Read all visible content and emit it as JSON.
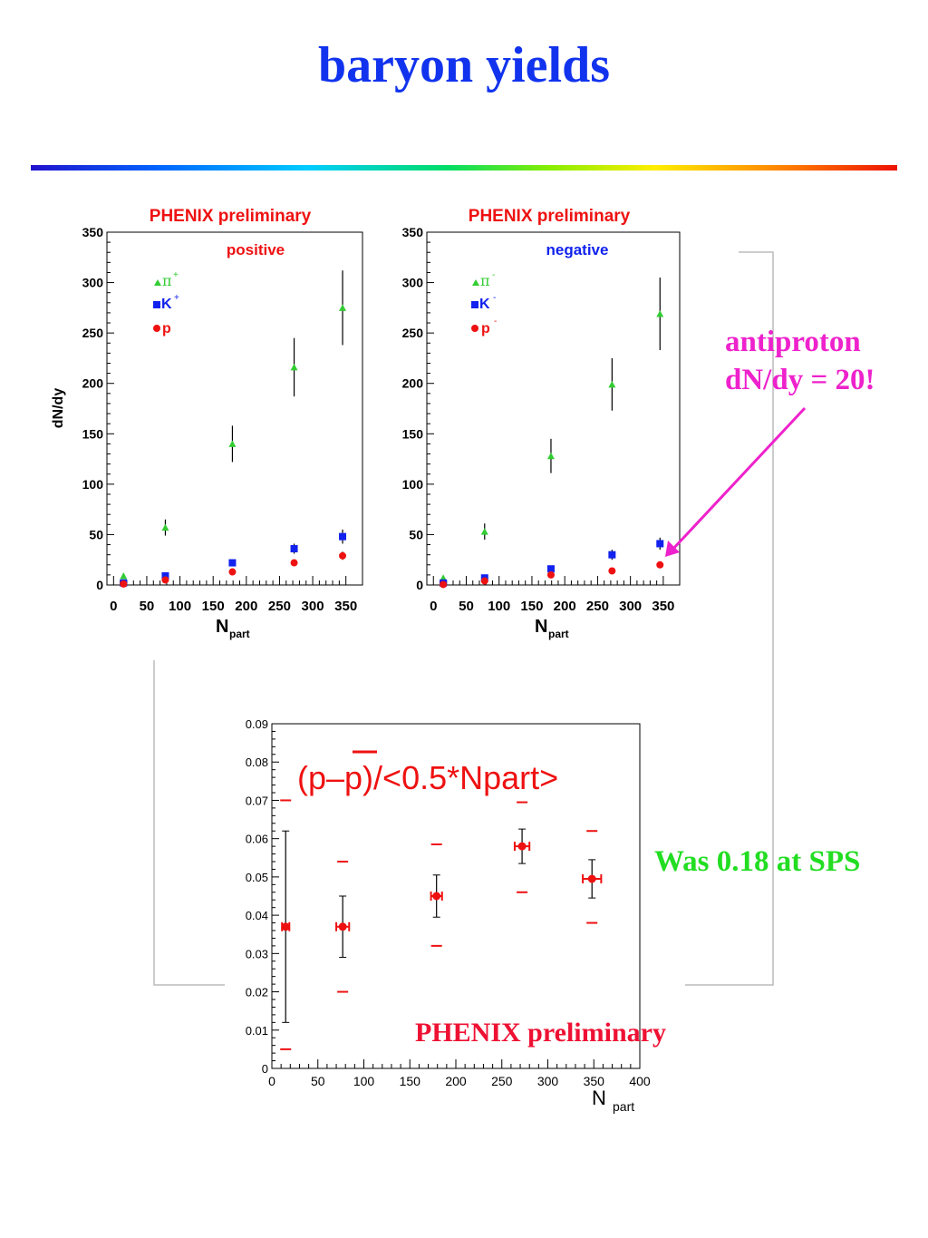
{
  "slide": {
    "title": "baryon yields",
    "annotation_antiproton_line1": "antiproton",
    "annotation_antiproton_line2": "dN/dy = 20!",
    "annotation_sps": "Was 0.18 at SPS",
    "annotation_phenix": "PHENIX preliminary"
  },
  "colors": {
    "pion": "#33cc33",
    "kaon": "#1122ee",
    "proton": "#ee1111",
    "arrow": "#ee22cc"
  },
  "chart_data": [
    {
      "type": "scatter",
      "title": "PHENIX preliminary",
      "subtitle": "positive",
      "xlabel": "N",
      "xlabel_sub": "part",
      "ylabel": "dN/dy",
      "xlim": [
        -10,
        375
      ],
      "ylim": [
        0,
        350
      ],
      "xticks": [
        "0",
        "50",
        "100",
        "150",
        "200",
        "250",
        "300",
        "350"
      ],
      "yticks": [
        "0",
        "50",
        "100",
        "150",
        "200",
        "250",
        "300",
        "350"
      ],
      "legend_position": "top-left",
      "series": [
        {
          "name": "π",
          "sup": "+",
          "marker": "triangle",
          "color": "#33cc33",
          "x": [
            15,
            78,
            179,
            272,
            345
          ],
          "y": [
            9,
            57,
            140,
            216,
            275
          ],
          "err": [
            2,
            8,
            18,
            29,
            37
          ]
        },
        {
          "name": "K",
          "sup": "+",
          "marker": "square",
          "color": "#1122ee",
          "x": [
            15,
            78,
            179,
            272,
            345
          ],
          "y": [
            2,
            9,
            22,
            36,
            48
          ],
          "err": [
            0.5,
            1.5,
            3,
            5,
            7
          ]
        },
        {
          "name": "p",
          "sup": "",
          "marker": "circle",
          "color": "#ee1111",
          "x": [
            15,
            78,
            179,
            272,
            345
          ],
          "y": [
            1,
            5,
            13,
            22,
            29
          ],
          "err": [
            0.3,
            1,
            2,
            3,
            4
          ]
        }
      ]
    },
    {
      "type": "scatter",
      "title": "PHENIX preliminary",
      "subtitle": "negative",
      "xlabel": "N",
      "xlabel_sub": "part",
      "ylabel": "",
      "xlim": [
        -10,
        375
      ],
      "ylim": [
        0,
        350
      ],
      "xticks": [
        "0",
        "50",
        "100",
        "150",
        "200",
        "250",
        "300",
        "350"
      ],
      "yticks": [
        "0",
        "50",
        "100",
        "150",
        "200",
        "250",
        "300",
        "350"
      ],
      "legend_position": "top-left",
      "series": [
        {
          "name": "π",
          "sup": "-",
          "marker": "triangle",
          "color": "#33cc33",
          "x": [
            15,
            78,
            179,
            272,
            345
          ],
          "y": [
            7,
            53,
            128,
            199,
            269
          ],
          "err": [
            2,
            8,
            17,
            26,
            36
          ]
        },
        {
          "name": "K",
          "sup": "-",
          "marker": "square",
          "color": "#1122ee",
          "x": [
            15,
            78,
            179,
            272,
            345
          ],
          "y": [
            2,
            7,
            16,
            30,
            41
          ],
          "err": [
            0.5,
            1.5,
            3,
            5,
            6
          ]
        },
        {
          "name": "p",
          "sup": "-",
          "marker": "circle",
          "color": "#ee1111",
          "x": [
            15,
            78,
            179,
            272,
            345
          ],
          "y": [
            0.5,
            4,
            10,
            14,
            20
          ],
          "err": [
            0.2,
            1,
            1.5,
            2,
            3
          ]
        }
      ]
    },
    {
      "type": "scatter",
      "title": "(p–p)/<0.5*Npart>",
      "xlabel": "N",
      "xlabel_sub": "part",
      "ylabel": "",
      "xlim": [
        0,
        400
      ],
      "ylim": [
        0,
        0.09
      ],
      "xticks": [
        "0",
        "50",
        "100",
        "150",
        "200",
        "250",
        "300",
        "350",
        "400"
      ],
      "yticks": [
        "0",
        "0.01",
        "0.02",
        "0.03",
        "0.04",
        "0.05",
        "0.06",
        "0.07",
        "0.08",
        "0.09"
      ],
      "series": [
        {
          "marker": "circle",
          "color": "#ee1111",
          "x": [
            15,
            77,
            179,
            272,
            348
          ],
          "y": [
            0.037,
            0.037,
            0.045,
            0.058,
            0.0495
          ],
          "stat_err": [
            0.025,
            0.008,
            0.0055,
            0.0045,
            0.005
          ],
          "x_err": [
            4,
            7,
            6,
            8,
            10
          ],
          "sys_low": [
            0.005,
            0.02,
            0.032,
            0.046,
            0.038
          ],
          "sys_high": [
            0.07,
            0.054,
            0.0585,
            0.0695,
            0.062
          ]
        }
      ]
    }
  ]
}
